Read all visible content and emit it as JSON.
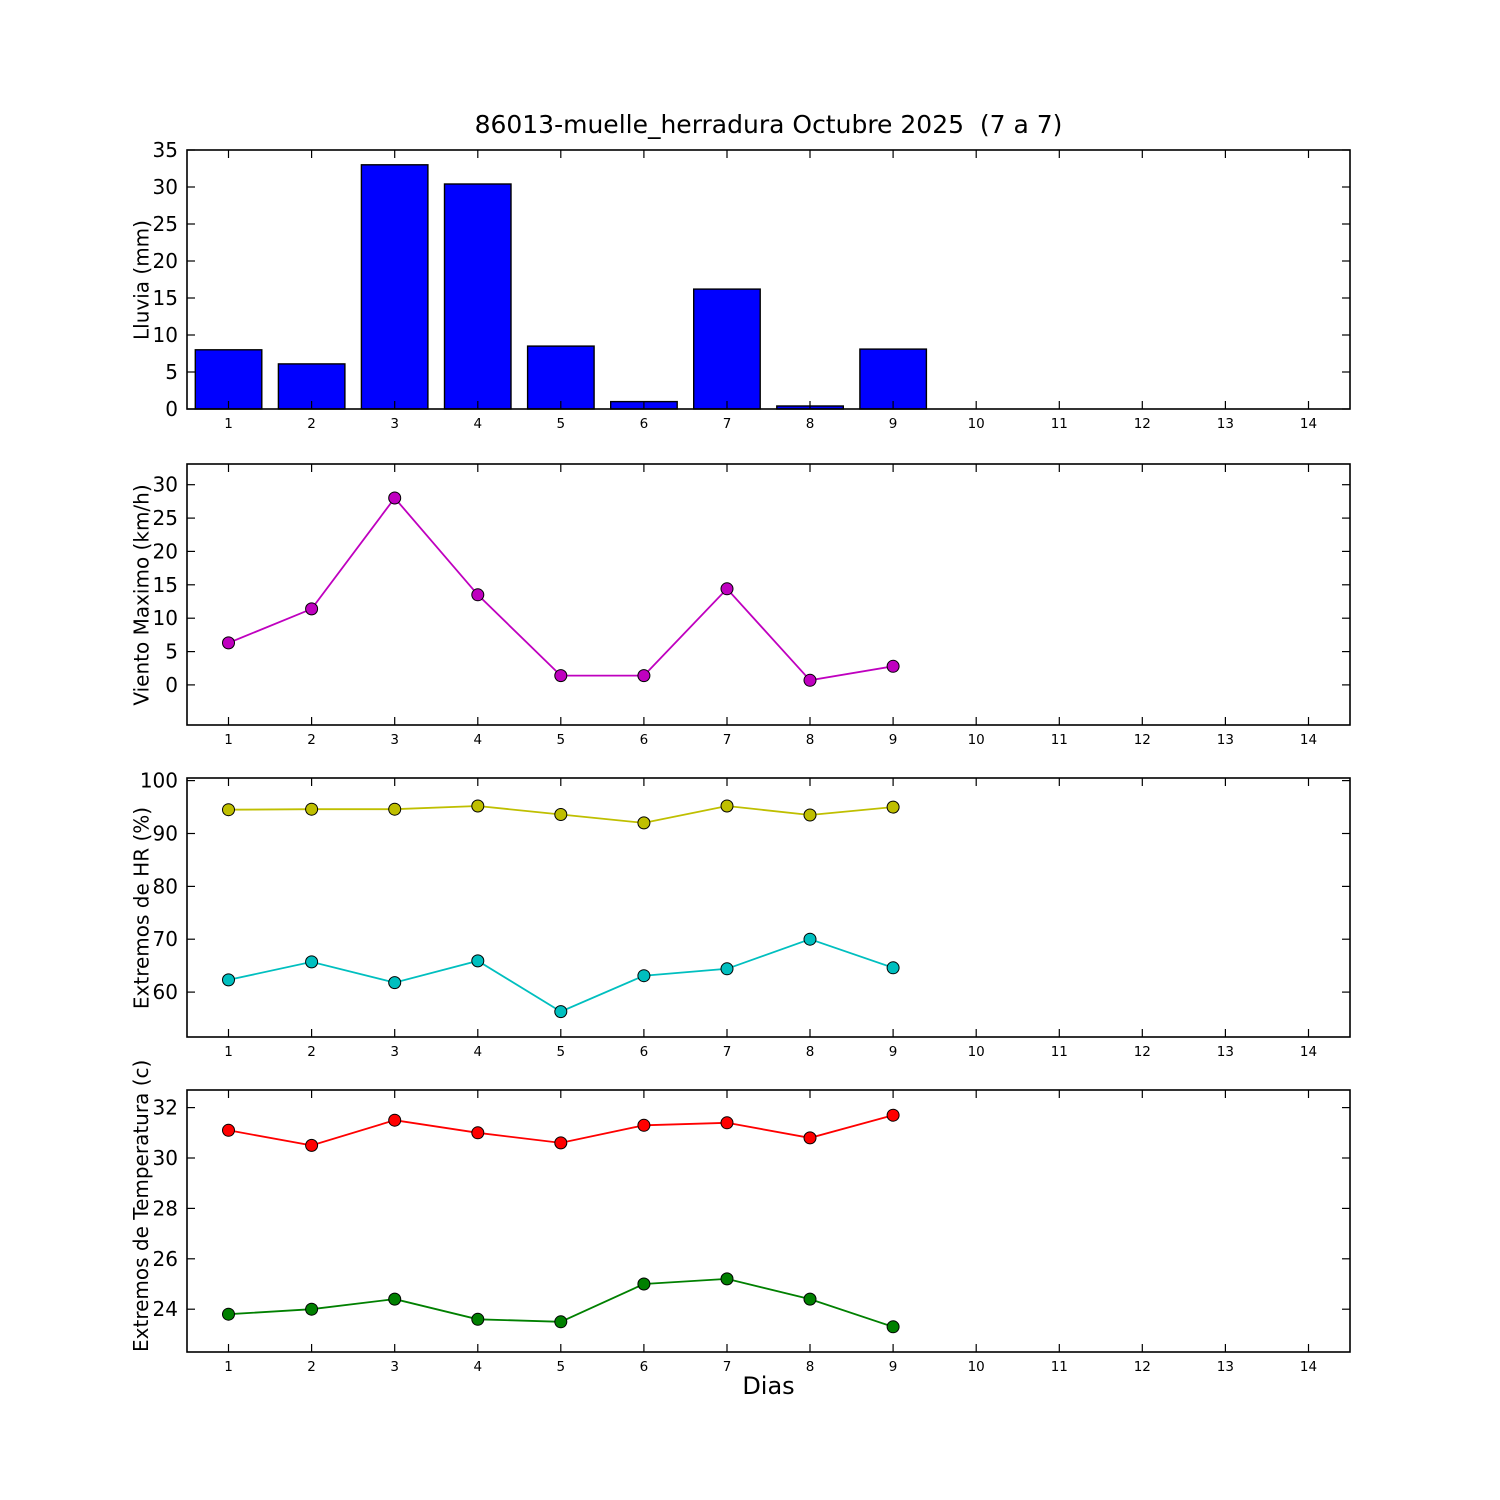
{
  "title": "86013-muelle_herradura Octubre 2025  (7 a 7)",
  "xlabel": "Dias",
  "days_axis": {
    "xlim": [
      0.5,
      14.5
    ],
    "ticks": [
      1,
      2,
      3,
      4,
      5,
      6,
      7,
      8,
      9,
      10,
      11,
      12,
      13,
      14
    ]
  },
  "chart_data": [
    {
      "type": "bar",
      "ylabel": "Lluvia (mm)",
      "categories": [
        1,
        2,
        3,
        4,
        5,
        6,
        7,
        8,
        9
      ],
      "values": [
        8.0,
        6.1,
        33.0,
        30.4,
        8.5,
        1.0,
        16.2,
        0.4,
        8.1
      ],
      "bar_color": "#0000ff",
      "bar_edge_color": "#000000",
      "bar_width": 0.8,
      "ylim": [
        0,
        35
      ],
      "yticks": [
        0,
        5,
        10,
        15,
        20,
        25,
        30,
        35
      ],
      "grid": false
    },
    {
      "type": "line",
      "ylabel": "Viento Maximo (km/h)",
      "x": [
        1,
        2,
        3,
        4,
        5,
        6,
        7,
        8,
        9
      ],
      "series": [
        {
          "name": "viento-maximo",
          "color": "#bf00bf",
          "values": [
            6.3,
            11.4,
            28.0,
            13.5,
            1.4,
            1.4,
            14.4,
            0.7,
            2.8
          ]
        }
      ],
      "ylim": [
        -6,
        33.1
      ],
      "yticks": [
        0,
        5,
        10,
        15,
        20,
        25,
        30
      ],
      "grid": false
    },
    {
      "type": "line",
      "ylabel": "Extremos de HR (%)",
      "x": [
        1,
        2,
        3,
        4,
        5,
        6,
        7,
        8,
        9
      ],
      "series": [
        {
          "name": "hr-maxima",
          "color": "#bfbf00",
          "values": [
            94.5,
            94.6,
            94.6,
            95.2,
            93.6,
            92.0,
            95.2,
            93.5,
            95.0
          ]
        },
        {
          "name": "hr-minima",
          "color": "#00bfbf",
          "values": [
            62.3,
            65.7,
            61.8,
            65.9,
            56.3,
            63.1,
            64.4,
            70.0,
            64.6
          ]
        }
      ],
      "ylim": [
        51.5,
        100.5
      ],
      "yticks": [
        60,
        70,
        80,
        90,
        100
      ],
      "grid": false
    },
    {
      "type": "line",
      "ylabel": "Extremos de Temperatura (c)",
      "x": [
        1,
        2,
        3,
        4,
        5,
        6,
        7,
        8,
        9
      ],
      "series": [
        {
          "name": "temp-maxima",
          "color": "#ff0000",
          "values": [
            31.1,
            30.5,
            31.5,
            31.0,
            30.6,
            31.3,
            31.4,
            30.8,
            31.7
          ]
        },
        {
          "name": "temp-minima",
          "color": "#008000",
          "values": [
            23.8,
            24.0,
            24.4,
            23.6,
            23.5,
            25.0,
            25.2,
            24.4,
            23.3
          ]
        }
      ],
      "ylim": [
        22.3,
        32.7
      ],
      "yticks": [
        24,
        26,
        28,
        30,
        32
      ],
      "grid": false
    }
  ]
}
